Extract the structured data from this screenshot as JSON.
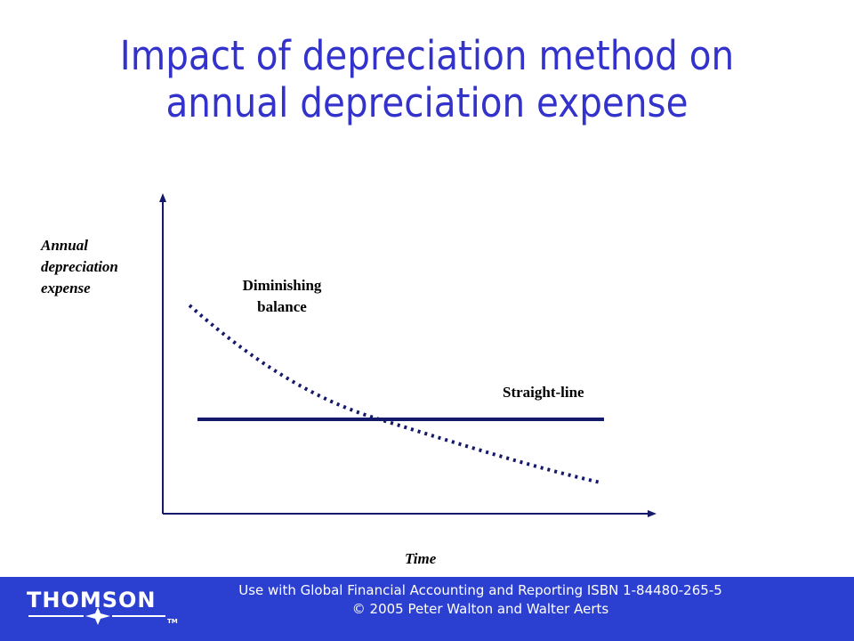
{
  "slide": {
    "title_line1": "Impact of depreciation method on",
    "title_line2": "annual depreciation expense"
  },
  "diagram": {
    "y_label_lines": [
      "Annual",
      "depreciation",
      "expense"
    ],
    "x_label": "Time",
    "curve_label_lines": [
      "Diminishing",
      "balance"
    ],
    "line_label": "Straight-line"
  },
  "footer": {
    "brand": "THOMSON",
    "tm": "TM",
    "line1": "Use with Global Financial Accounting and Reporting ISBN 1-84480-265-5",
    "line2": "© 2005 Peter Walton and Walter Aerts"
  },
  "colors": {
    "title": "#3333cc",
    "lines": "#14196b",
    "footer_bg": "#2b3fd0"
  }
}
